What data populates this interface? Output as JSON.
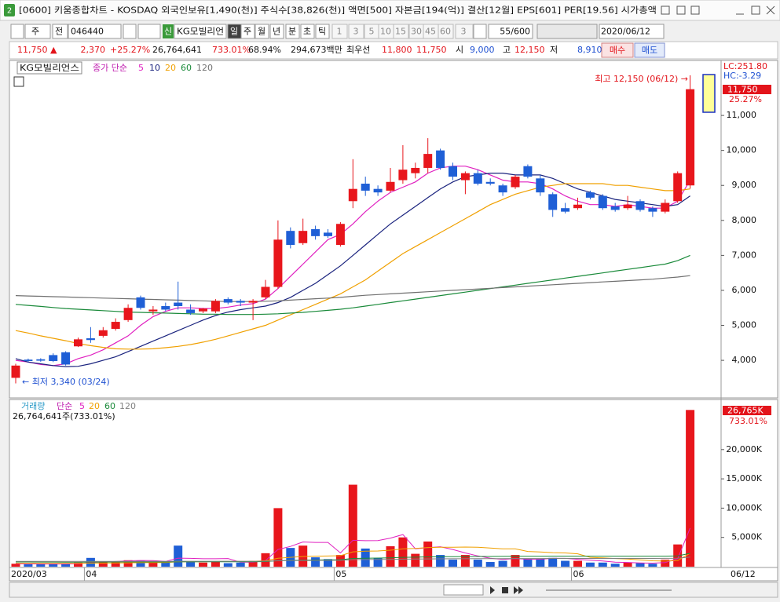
{
  "window": {
    "icon": "2",
    "title": "[0600] 키움종합차트 - KOSDAQ 외국인보유[1,490(천)] 주식수[38,826(천)] 액면[500] 자본금[194(억)] 결산[12월] EPS[601] PER[19.56] 시가총액"
  },
  "toolbar": {
    "period_unit": "주",
    "mode": "전",
    "code": "046440",
    "new_badge": "신",
    "stock_name": "KG모빌리언",
    "intervals": [
      "일",
      "주",
      "월",
      "년",
      "분",
      "초",
      "틱"
    ],
    "minutes": [
      "1",
      "3",
      "5",
      "10",
      "15",
      "30",
      "45",
      "60"
    ],
    "custom": "3",
    "count": "55/600",
    "date": "2020/06/12"
  },
  "info": {
    "price": "11,750 ▲",
    "change": "2,370",
    "change_pct": "+25.27%",
    "volume": "26,764,641",
    "volume_pct": "733.01%",
    "turnover": "68.94%",
    "amount": "294,673백만",
    "best_label": "최우선",
    "ask": "11,800",
    "bid": "11,750",
    "open_label": "시",
    "open": "9,000",
    "high_label": "고",
    "high": "12,150",
    "low_label": "저",
    "low": "8,910",
    "buy": "매수",
    "sell": "매도"
  },
  "chart_data": [
    {
      "type": "candlestick",
      "name": "KG모빌리언스",
      "legend_title": "종가 단순",
      "up_color": "#e8161c",
      "down_color": "#1f5fd6",
      "open": [
        3500,
        4020,
        4030,
        4150,
        4230,
        4400,
        4630,
        4700,
        4900,
        5150,
        5800,
        5400,
        5550,
        5650,
        5450,
        5400,
        5400,
        5750,
        5700,
        5650,
        5800,
        6100,
        7700,
        7350,
        7750,
        7650,
        7300,
        8550,
        9050,
        8900,
        8850,
        9150,
        9350,
        9500,
        10000,
        9550,
        9150,
        9350,
        9100,
        9000,
        8950,
        9550,
        9200,
        8750,
        8350,
        8350,
        8800,
        8700,
        8400,
        8350,
        8550,
        8350,
        8250,
        8550,
        9000
      ],
      "high": [
        3900,
        4050,
        4060,
        4200,
        4260,
        4650,
        4950,
        4950,
        5200,
        5600,
        5850,
        5550,
        5650,
        6250,
        5600,
        5500,
        5750,
        5800,
        5750,
        5750,
        6300,
        8000,
        7800,
        8050,
        7850,
        7750,
        7950,
        9750,
        9250,
        9000,
        9500,
        10150,
        9650,
        10350,
        10050,
        9650,
        9400,
        9450,
        9200,
        9050,
        9300,
        9600,
        9300,
        8800,
        8500,
        8650,
        8850,
        8750,
        8500,
        8700,
        8600,
        8400,
        8600,
        9400,
        12150
      ],
      "low": [
        3340,
        3950,
        3960,
        3950,
        3850,
        4380,
        4500,
        4650,
        4850,
        5100,
        5450,
        5300,
        5400,
        5450,
        5300,
        5350,
        5350,
        5600,
        5550,
        5150,
        5750,
        6050,
        7200,
        7300,
        7450,
        7500,
        7250,
        8350,
        8700,
        8700,
        8800,
        9050,
        9200,
        9350,
        9450,
        9150,
        8750,
        9000,
        9000,
        8700,
        8900,
        9200,
        8700,
        8100,
        8200,
        8300,
        8600,
        8300,
        8250,
        8300,
        8250,
        8100,
        8200,
        8500,
        8910
      ],
      "close": [
        3850,
        3980,
        3990,
        3980,
        3880,
        4600,
        4580,
        4860,
        5100,
        5500,
        5500,
        5450,
        5450,
        5550,
        5350,
        5480,
        5700,
        5650,
        5650,
        5700,
        6100,
        7450,
        7300,
        7700,
        7550,
        7550,
        7900,
        8900,
        8850,
        8800,
        9100,
        9450,
        9500,
        9900,
        9500,
        9250,
        9350,
        9050,
        9050,
        8800,
        9250,
        9250,
        8800,
        8300,
        8250,
        8450,
        8650,
        8350,
        8300,
        8450,
        8300,
        8250,
        8500,
        9350,
        11750
      ],
      "lines": [
        {
          "name": "5",
          "color": "#e020c0",
          "values": [
            4000,
            3950,
            3880,
            3850,
            3900,
            4050,
            4150,
            4300,
            4500,
            4700,
            5000,
            5250,
            5400,
            5500,
            5500,
            5480,
            5480,
            5520,
            5580,
            5620,
            5750,
            6050,
            6400,
            6750,
            7100,
            7450,
            7600,
            7900,
            8250,
            8550,
            8800,
            8950,
            9100,
            9350,
            9500,
            9550,
            9550,
            9450,
            9300,
            9150,
            9100,
            9100,
            9050,
            8900,
            8700,
            8550,
            8450,
            8450,
            8400,
            8450,
            8400,
            8350,
            8350,
            8550,
            9150
          ]
        },
        {
          "name": "10",
          "color": "#1a237e",
          "values": [
            4050,
            3950,
            3900,
            3850,
            3820,
            3830,
            3900,
            4000,
            4100,
            4250,
            4400,
            4550,
            4700,
            4850,
            5000,
            5150,
            5280,
            5380,
            5450,
            5500,
            5550,
            5650,
            5800,
            6000,
            6200,
            6450,
            6700,
            7000,
            7300,
            7600,
            7900,
            8150,
            8400,
            8650,
            8900,
            9100,
            9250,
            9300,
            9350,
            9350,
            9300,
            9300,
            9300,
            9200,
            9050,
            8900,
            8800,
            8700,
            8600,
            8550,
            8500,
            8450,
            8400,
            8450,
            8700
          ]
        },
        {
          "name": "20",
          "color": "#f0a000",
          "values": [
            4850,
            4780,
            4700,
            4630,
            4560,
            4480,
            4420,
            4370,
            4330,
            4320,
            4320,
            4330,
            4360,
            4400,
            4450,
            4520,
            4600,
            4700,
            4800,
            4900,
            5000,
            5150,
            5300,
            5450,
            5600,
            5750,
            5900,
            6100,
            6300,
            6550,
            6800,
            7050,
            7250,
            7450,
            7650,
            7850,
            8050,
            8250,
            8450,
            8600,
            8750,
            8850,
            8950,
            9000,
            9050,
            9050,
            9050,
            9050,
            9000,
            9000,
            8950,
            8900,
            8850,
            8850,
            8900
          ]
        },
        {
          "name": "60",
          "color": "#1a8a3a",
          "values": [
            5600,
            5570,
            5540,
            5510,
            5480,
            5460,
            5440,
            5420,
            5400,
            5380,
            5370,
            5360,
            5350,
            5340,
            5330,
            5320,
            5320,
            5310,
            5310,
            5310,
            5320,
            5330,
            5350,
            5370,
            5400,
            5430,
            5460,
            5500,
            5550,
            5600,
            5650,
            5700,
            5750,
            5800,
            5850,
            5900,
            5950,
            6000,
            6050,
            6100,
            6150,
            6200,
            6250,
            6300,
            6350,
            6400,
            6450,
            6500,
            6550,
            6600,
            6650,
            6700,
            6750,
            6850,
            7000
          ]
        },
        {
          "name": "120",
          "color": "#707070",
          "values": [
            5850,
            5840,
            5830,
            5820,
            5810,
            5800,
            5790,
            5780,
            5770,
            5760,
            5750,
            5740,
            5730,
            5720,
            5710,
            5700,
            5690,
            5680,
            5680,
            5680,
            5690,
            5700,
            5720,
            5740,
            5760,
            5780,
            5800,
            5830,
            5860,
            5880,
            5900,
            5920,
            5940,
            5960,
            5980,
            6000,
            6020,
            6040,
            6060,
            6080,
            6100,
            6120,
            6140,
            6160,
            6180,
            6200,
            6220,
            6240,
            6260,
            6280,
            6300,
            6320,
            6350,
            6380,
            6420
          ]
        }
      ],
      "ylim": [
        2970,
        12550
      ],
      "yticks": [
        {
          "value": 4000,
          "label": "4,000"
        },
        {
          "value": 5000,
          "label": "5,000"
        },
        {
          "value": 6000,
          "label": "6,000"
        },
        {
          "value": 7000,
          "label": "7,000"
        },
        {
          "value": 8000,
          "label": "8,000"
        },
        {
          "value": 9000,
          "label": "9,000"
        },
        {
          "value": 10000,
          "label": "10,000"
        },
        {
          "value": 11000,
          "label": "11,000"
        }
      ],
      "annotations": {
        "high": "최고 12,150 (06/12) →",
        "low": "← 최저 3,340 (03/24)"
      },
      "lc": "LC:251.80",
      "hc": "HC:-3.29",
      "last_label": "11,750",
      "last_change": "25.27%"
    },
    {
      "type": "bar",
      "legend_label": "거래량",
      "legend_title": "단순",
      "summary": "26,764,641주(733.01%)",
      "categories": [
        "2020/03",
        null,
        null,
        null,
        null,
        null,
        "04",
        null,
        null,
        null,
        null,
        null,
        null,
        null,
        null,
        null,
        null,
        null,
        null,
        null,
        null,
        null,
        null,
        null,
        null,
        null,
        "05",
        null,
        null,
        null,
        null,
        null,
        null,
        null,
        null,
        null,
        null,
        null,
        null,
        null,
        null,
        null,
        null,
        null,
        null,
        "06",
        null,
        null,
        null,
        null,
        null,
        null,
        null,
        null,
        null
      ],
      "values": [
        500,
        400,
        400,
        500,
        500,
        700,
        1500,
        800,
        900,
        1100,
        1000,
        900,
        700,
        3600,
        900,
        700,
        900,
        600,
        700,
        1000,
        2300,
        10000,
        3200,
        3600,
        1600,
        1300,
        2000,
        14000,
        3100,
        1500,
        3500,
        5000,
        2200,
        4300,
        2000,
        1200,
        2000,
        1200,
        800,
        1000,
        2000,
        1300,
        1300,
        1500,
        1000,
        1000,
        700,
        700,
        500,
        700,
        600,
        500,
        1200,
        3800,
        26765
      ],
      "lines": [
        {
          "name": "5",
          "color": "#e020c0",
          "values": [
            500,
            480,
            450,
            460,
            460,
            500,
            720,
            800,
            880,
            1000,
            1060,
            1040,
            900,
            1460,
            1420,
            1360,
            1350,
            1400,
            760,
            760,
            1040,
            2940,
            3460,
            4220,
            4140,
            4140,
            2340,
            4500,
            4440,
            4460,
            4880,
            5480,
            3060,
            3260,
            3400,
            2940,
            2340,
            1840,
            1440,
            1240,
            1400,
            1260,
            1280,
            1420,
            1420,
            1260,
            1100,
            980,
            780,
            720,
            640,
            600,
            700,
            1360,
            6600
          ]
        },
        {
          "name": "20",
          "color": "#f0a000",
          "values": [
            600,
            590,
            580,
            570,
            560,
            560,
            600,
            620,
            640,
            660,
            680,
            700,
            700,
            830,
            850,
            860,
            880,
            900,
            910,
            920,
            1000,
            1450,
            1590,
            1740,
            1790,
            1820,
            1880,
            2530,
            2640,
            2680,
            2820,
            3040,
            3110,
            3270,
            3330,
            3330,
            3350,
            3320,
            3190,
            3040,
            3040,
            2600,
            2500,
            2400,
            2350,
            2200,
            1600,
            1500,
            1400,
            1300,
            1150,
            1000,
            950,
            1050,
            2300
          ]
        },
        {
          "name": "60",
          "color": "#1a8a3a",
          "values": [
            800,
            800,
            790,
            790,
            780,
            780,
            790,
            790,
            800,
            800,
            800,
            800,
            800,
            830,
            830,
            830,
            840,
            840,
            840,
            850,
            870,
            1020,
            1070,
            1120,
            1140,
            1160,
            1190,
            1410,
            1450,
            1470,
            1520,
            1590,
            1620,
            1680,
            1700,
            1710,
            1730,
            1740,
            1740,
            1750,
            1770,
            1780,
            1780,
            1790,
            1790,
            1790,
            1790,
            1790,
            1790,
            1790,
            1790,
            1790,
            1800,
            1850,
            2280
          ]
        },
        {
          "name": "120",
          "color": "#808080",
          "values": [
            900,
            900,
            900,
            900,
            900,
            900,
            900,
            900,
            900,
            900,
            900,
            900,
            900,
            920,
            920,
            920,
            920,
            920,
            920,
            930,
            940,
            1010,
            1030,
            1060,
            1070,
            1080,
            1090,
            1200,
            1220,
            1230,
            1250,
            1290,
            1300,
            1330,
            1340,
            1350,
            1360,
            1370,
            1370,
            1380,
            1390,
            1400,
            1400,
            1410,
            1410,
            1410,
            1410,
            1410,
            1410,
            1410,
            1410,
            1410,
            1420,
            1440,
            1650
          ]
        }
      ],
      "ylim": [
        0,
        28150
      ],
      "yticks": [
        {
          "value": 5000,
          "label": "5,000K"
        },
        {
          "value": 10000,
          "label": "10,000K"
        },
        {
          "value": 15000,
          "label": "15,000K"
        },
        {
          "value": 20000,
          "label": "20,000K"
        }
      ],
      "last_label": "26,765K",
      "last_change": "733.01%",
      "end_label": "06/12"
    }
  ]
}
